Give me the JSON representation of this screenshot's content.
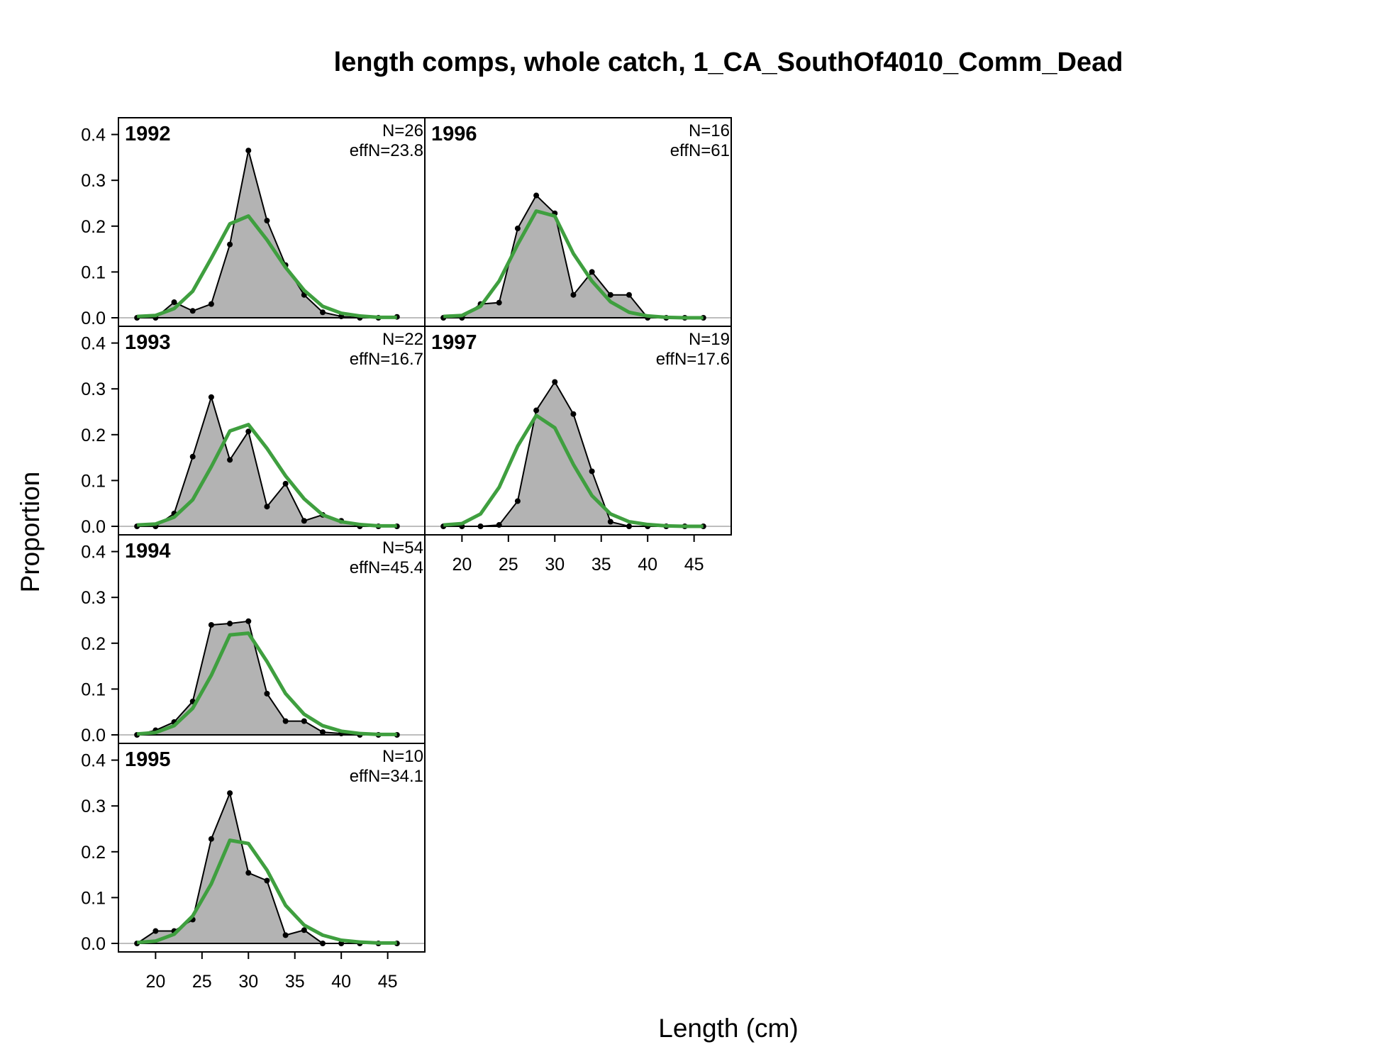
{
  "chart_data": {
    "type": "area",
    "title": "length comps, whole catch, 1_CA_SouthOf4010_Comm_Dead",
    "xlabel": "Length (cm)",
    "ylabel": "Proportion",
    "xlim": [
      16,
      49
    ],
    "ylim": [
      0,
      0.44
    ],
    "x_ticks": [
      "20",
      "25",
      "30",
      "35",
      "40",
      "45"
    ],
    "y_ticks": [
      "0.0",
      "0.1",
      "0.2",
      "0.3",
      "0.4"
    ],
    "x": [
      18,
      20,
      22,
      24,
      26,
      28,
      30,
      32,
      34,
      36,
      38,
      40,
      42,
      44,
      46
    ],
    "colors": {
      "observed_fill": "#b3b3b3",
      "observed_line": "#000000",
      "expected_line": "#3f9f3f",
      "zero_line": "#bebebe"
    },
    "panels": [
      {
        "year": "1992",
        "n_label": "N=26",
        "effn_label": "effN=23.8",
        "observed": [
          0.0,
          0.0,
          0.034,
          0.015,
          0.03,
          0.16,
          0.365,
          0.212,
          0.115,
          0.05,
          0.012,
          0.003,
          0.0,
          0.0,
          0.002
        ],
        "expected": [
          0.003,
          0.005,
          0.02,
          0.058,
          0.13,
          0.205,
          0.222,
          0.17,
          0.11,
          0.06,
          0.025,
          0.01,
          0.004,
          0.001,
          0.001
        ]
      },
      {
        "year": "1993",
        "n_label": "N=22",
        "effn_label": "effN=16.7",
        "observed": [
          0.0,
          0.0,
          0.028,
          0.152,
          0.282,
          0.145,
          0.207,
          0.043,
          0.093,
          0.012,
          0.025,
          0.012,
          0.0,
          0.0,
          0.0
        ],
        "expected": [
          0.003,
          0.005,
          0.02,
          0.058,
          0.13,
          0.208,
          0.222,
          0.17,
          0.11,
          0.06,
          0.025,
          0.01,
          0.004,
          0.001,
          0.001
        ]
      },
      {
        "year": "1994",
        "n_label": "N=54",
        "effn_label": "effN=45.4",
        "observed": [
          0.0,
          0.01,
          0.028,
          0.073,
          0.24,
          0.243,
          0.248,
          0.09,
          0.03,
          0.03,
          0.006,
          0.003,
          0.0,
          0.0,
          0.0
        ],
        "expected": [
          0.002,
          0.005,
          0.02,
          0.058,
          0.13,
          0.218,
          0.222,
          0.16,
          0.09,
          0.045,
          0.02,
          0.008,
          0.003,
          0.001,
          0.001
        ]
      },
      {
        "year": "1995",
        "n_label": "N=10",
        "effn_label": "effN=34.1",
        "observed": [
          0.0,
          0.027,
          0.027,
          0.052,
          0.228,
          0.328,
          0.154,
          0.137,
          0.018,
          0.029,
          0.0,
          0.0,
          0.0,
          0.0,
          0.0
        ],
        "expected": [
          0.002,
          0.005,
          0.02,
          0.06,
          0.13,
          0.225,
          0.218,
          0.16,
          0.083,
          0.04,
          0.018,
          0.007,
          0.003,
          0.001,
          0.001
        ]
      },
      {
        "year": "1996",
        "n_label": "N=16",
        "effn_label": "effN=61",
        "observed": [
          0.0,
          0.0,
          0.03,
          0.033,
          0.195,
          0.267,
          0.228,
          0.05,
          0.1,
          0.05,
          0.05,
          0.0,
          0.0,
          0.0,
          0.0
        ],
        "expected": [
          0.003,
          0.005,
          0.025,
          0.08,
          0.16,
          0.233,
          0.222,
          0.14,
          0.08,
          0.035,
          0.012,
          0.004,
          0.001,
          0.0,
          0.0
        ]
      },
      {
        "year": "1997",
        "n_label": "N=19",
        "effn_label": "effN=17.6",
        "observed": [
          0.0,
          0.0,
          0.0,
          0.003,
          0.055,
          0.253,
          0.315,
          0.245,
          0.12,
          0.01,
          0.0,
          0.0,
          0.0,
          0.0,
          0.0
        ],
        "expected": [
          0.003,
          0.006,
          0.027,
          0.085,
          0.175,
          0.242,
          0.215,
          0.135,
          0.067,
          0.027,
          0.01,
          0.004,
          0.001,
          0.0,
          0.0
        ]
      }
    ]
  }
}
